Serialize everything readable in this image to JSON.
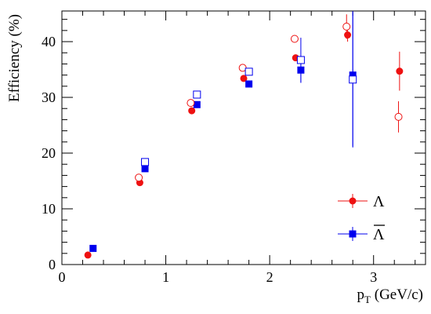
{
  "chart_data": {
    "type": "scatter",
    "xlabel_main": "p",
    "xlabel_sub": "T",
    "xlabel_unit": " (GeV/c)",
    "ylabel": "Efficiency (%)",
    "xlim": [
      0,
      3.5
    ],
    "ylim": [
      0,
      45.5
    ],
    "x_ticks": [
      0,
      1,
      2,
      3
    ],
    "y_ticks": [
      0,
      10,
      20,
      30,
      40
    ],
    "grid": false,
    "legend_position": "bottom-right",
    "colors": {
      "lambda": "#ee1111",
      "antilambda": "#0000ee"
    },
    "series": [
      {
        "name": "Λ",
        "marker": "filled-circle",
        "color": "#ee1111",
        "points": [
          {
            "x": 0.25,
            "y": 1.7
          },
          {
            "x": 0.75,
            "y": 14.7
          },
          {
            "x": 1.25,
            "y": 27.6
          },
          {
            "x": 1.75,
            "y": 33.4
          },
          {
            "x": 2.25,
            "y": 37.1
          },
          {
            "x": 2.75,
            "y": 41.2,
            "err": 1.2
          },
          {
            "x": 3.25,
            "y": 34.7,
            "err": 3.5
          }
        ]
      },
      {
        "name": "Λ̄",
        "marker": "filled-square",
        "color": "#0000ee",
        "points": [
          {
            "x": 0.3,
            "y": 2.9
          },
          {
            "x": 0.8,
            "y": 17.2
          },
          {
            "x": 1.3,
            "y": 28.7
          },
          {
            "x": 1.8,
            "y": 32.4
          },
          {
            "x": 2.3,
            "y": 34.9,
            "err": 2.3
          },
          {
            "x": 2.8,
            "y": 34.0,
            "err": 13.0
          }
        ]
      },
      {
        "marker": "open-circle",
        "color": "#ee1111",
        "points": [
          {
            "x": 0.74,
            "y": 15.6
          },
          {
            "x": 1.24,
            "y": 29.0
          },
          {
            "x": 1.74,
            "y": 35.3
          },
          {
            "x": 2.24,
            "y": 40.5
          },
          {
            "x": 2.74,
            "y": 42.7,
            "err": 2.2
          },
          {
            "x": 3.24,
            "y": 26.5,
            "err": 2.8
          }
        ]
      },
      {
        "marker": "open-square",
        "color": "#0000ee",
        "points": [
          {
            "x": 0.8,
            "y": 18.4
          },
          {
            "x": 1.3,
            "y": 30.5
          },
          {
            "x": 1.8,
            "y": 34.6
          },
          {
            "x": 2.3,
            "y": 36.7,
            "err": 4.0
          },
          {
            "x": 2.8,
            "y": 33.2,
            "err": 12.0
          }
        ]
      }
    ],
    "legend": [
      {
        "label": "Λ",
        "series": 0
      },
      {
        "label": "Λ",
        "overline": true,
        "series": 1
      }
    ]
  }
}
